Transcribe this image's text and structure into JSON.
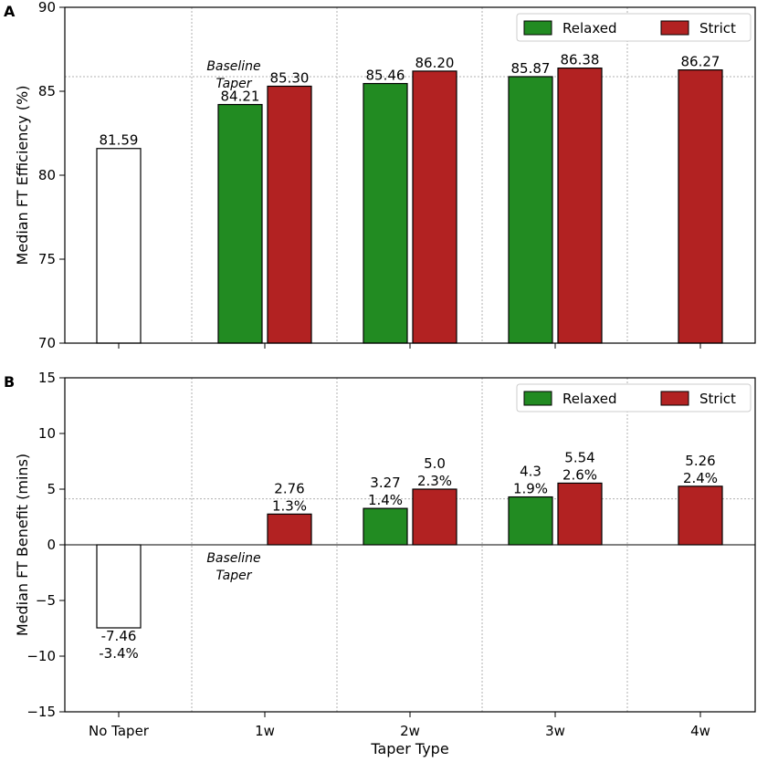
{
  "chart_data": [
    {
      "panel_label": "A",
      "type": "bar",
      "ylabel": "Median FT Efficiency (%)",
      "xlabel": "",
      "ylim": [
        70,
        90
      ],
      "yticks": [
        "70",
        "75",
        "80",
        "85",
        "90"
      ],
      "categories": [
        "No Taper",
        "1w",
        "2w",
        "3w",
        "4w"
      ],
      "series": [
        {
          "name": "No Taper",
          "color": "#ffffff",
          "in_legend": false,
          "values": [
            81.59,
            null,
            null,
            null,
            null
          ],
          "labels": [
            "81.59",
            null,
            null,
            null,
            null
          ]
        },
        {
          "name": "Relaxed",
          "color": "#228b22",
          "in_legend": true,
          "values": [
            null,
            84.21,
            85.46,
            85.87,
            null
          ],
          "labels": [
            null,
            "84.21",
            "85.46",
            "85.87",
            null
          ]
        },
        {
          "name": "Strict",
          "color": "#b22222",
          "in_legend": true,
          "values": [
            null,
            85.3,
            86.2,
            86.38,
            86.27
          ],
          "labels": [
            null,
            "85.30",
            "86.20",
            "86.38",
            "86.27"
          ]
        }
      ],
      "reference_line": 85.87,
      "annotation": {
        "text_line1": "Baseline",
        "text_line2": "Taper",
        "category": "1w"
      },
      "legend": {
        "location": "top-right",
        "entries": [
          "Relaxed",
          "Strict"
        ]
      },
      "grid": true
    },
    {
      "panel_label": "B",
      "type": "bar",
      "ylabel": "Median FT Benefit (mins)",
      "xlabel": "Taper Type",
      "ylim": [
        -15,
        15
      ],
      "yticks": [
        "−15",
        "−10",
        "−5",
        "0",
        "5",
        "10",
        "15"
      ],
      "categories": [
        "No Taper",
        "1w",
        "2w",
        "3w",
        "4w"
      ],
      "series": [
        {
          "name": "No Taper",
          "color": "#ffffff",
          "in_legend": false,
          "values": [
            -7.46,
            null,
            null,
            null,
            null
          ],
          "labels": [
            [
              "-7.46",
              "-3.4%"
            ],
            null,
            null,
            null,
            null
          ]
        },
        {
          "name": "Relaxed",
          "color": "#228b22",
          "in_legend": true,
          "values": [
            null,
            0,
            3.27,
            4.3,
            null
          ],
          "labels": [
            null,
            null,
            [
              "3.27",
              "1.4%"
            ],
            [
              "4.3",
              "1.9%"
            ],
            null
          ]
        },
        {
          "name": "Strict",
          "color": "#b22222",
          "in_legend": true,
          "values": [
            null,
            2.76,
            5.0,
            5.54,
            5.26
          ],
          "labels": [
            null,
            [
              "2.76",
              "1.3%"
            ],
            [
              "5.0",
              "2.3%"
            ],
            [
              "5.54",
              "2.6%"
            ],
            [
              "5.26",
              "2.4%"
            ]
          ]
        }
      ],
      "reference_line": 4.13,
      "annotation": {
        "text_line1": "Baseline",
        "text_line2": "Taper",
        "category": "1w"
      },
      "legend": {
        "location": "top-right",
        "entries": [
          "Relaxed",
          "Strict"
        ]
      },
      "grid": true
    }
  ]
}
